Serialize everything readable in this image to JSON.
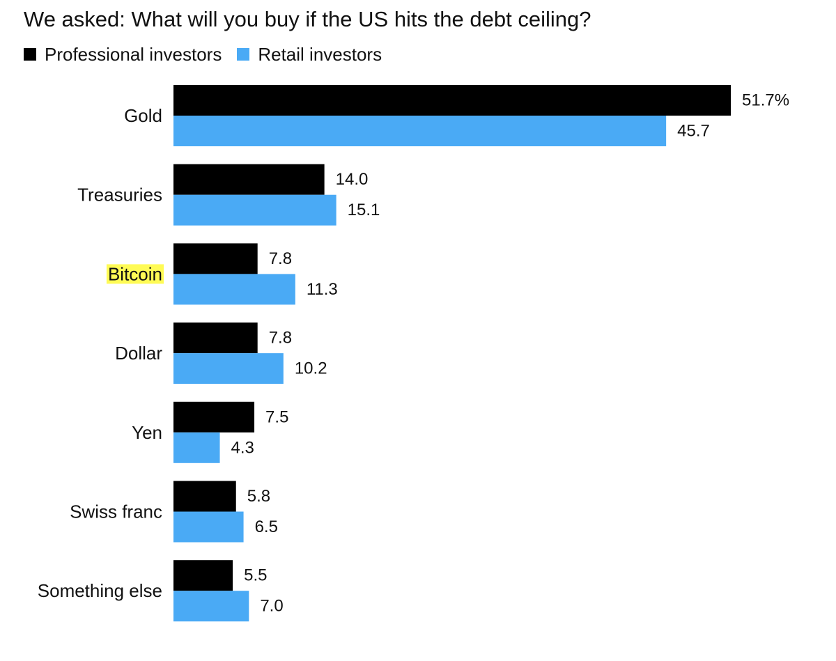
{
  "chart_data": {
    "type": "bar",
    "orientation": "horizontal",
    "title": "We asked: What will you buy if the US hits the debt ceiling?",
    "categories": [
      "Gold",
      "Treasuries",
      "Bitcoin",
      "Dollar",
      "Yen",
      "Swiss franc",
      "Something else"
    ],
    "highlighted_category": "Bitcoin",
    "highlight_color": "#fffb55",
    "series": [
      {
        "name": "Professional investors",
        "color": "#000000",
        "values": [
          51.7,
          14.0,
          7.8,
          7.8,
          7.5,
          5.8,
          5.5
        ],
        "labels": [
          "51.7%",
          "14.0",
          "7.8",
          "7.8",
          "7.5",
          "5.8",
          "5.5"
        ]
      },
      {
        "name": "Retail investors",
        "color": "#4aaaf5",
        "values": [
          45.7,
          15.1,
          11.3,
          10.2,
          4.3,
          6.5,
          7.0
        ],
        "labels": [
          "45.7",
          "15.1",
          "11.3",
          "10.2",
          "4.3",
          "6.5",
          "7.0"
        ]
      }
    ],
    "xlim": [
      0,
      51.7
    ],
    "legend_position": "top-left",
    "grid": false
  }
}
